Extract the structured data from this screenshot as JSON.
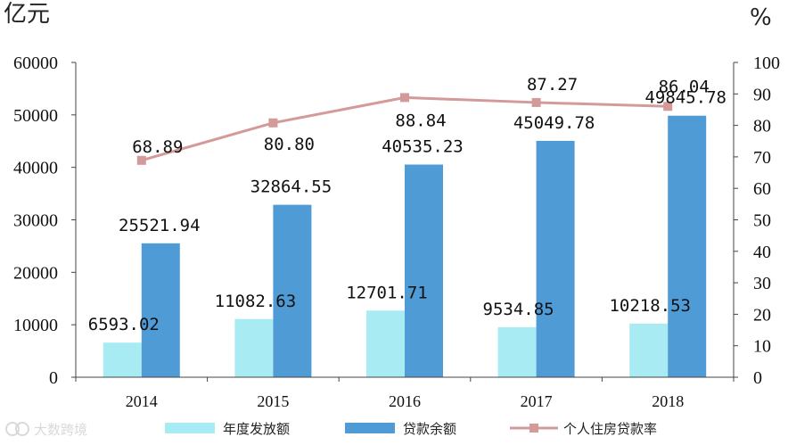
{
  "chart_data": {
    "type": "bar",
    "categories": [
      "2014",
      "2015",
      "2016",
      "2017",
      "2018"
    ],
    "series": [
      {
        "name": "年度发放额",
        "type": "bar",
        "axis": "left",
        "values": [
          6593.02,
          11082.63,
          12701.71,
          9534.85,
          10218.53
        ],
        "labels": [
          "6593.02",
          "11082.63",
          "12701.71",
          "9534.85",
          "10218.53"
        ],
        "color": "#a9ebf3"
      },
      {
        "name": "贷款余额",
        "type": "bar",
        "axis": "left",
        "values": [
          25521.94,
          32864.55,
          40535.23,
          45049.78,
          49845.78
        ],
        "labels": [
          "25521.94",
          "32864.55",
          "40535.23",
          "45049.78",
          "49845.78"
        ],
        "color": "#4f9bd6"
      },
      {
        "name": "个人住房贷款率",
        "type": "line",
        "axis": "right",
        "values": [
          68.89,
          80.8,
          88.84,
          87.27,
          86.04
        ],
        "labels": [
          "68.89",
          "80.80",
          "88.84",
          "87.27",
          "86.04"
        ],
        "color": "#d49a9a"
      }
    ],
    "y_left": {
      "unit": "亿元",
      "ylim": [
        0,
        60000
      ],
      "ticks": [
        "0",
        "10000",
        "20000",
        "30000",
        "40000",
        "50000",
        "60000"
      ]
    },
    "y_right": {
      "unit": "%",
      "ylim": [
        0,
        100
      ],
      "ticks": [
        "0",
        "10",
        "20",
        "30",
        "40",
        "50",
        "60",
        "70",
        "80",
        "90",
        "100"
      ]
    },
    "grid": false,
    "legend_position": "bottom"
  },
  "watermark": "大数跨境"
}
